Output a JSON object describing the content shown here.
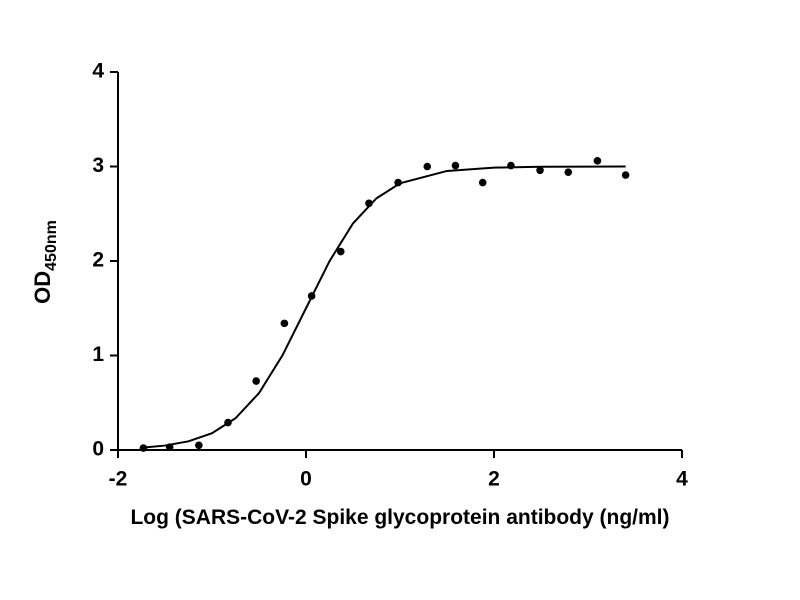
{
  "chart_data": {
    "type": "scatter",
    "xlabel": "Log (SARS-CoV-2 Spike glycoprotein antibody (ng/ml)",
    "ylabel": {
      "main": "OD",
      "sub": "450nm"
    },
    "xlim": [
      -2,
      4
    ],
    "xticks": [
      -2,
      0,
      2,
      4
    ],
    "ylim": [
      0,
      4
    ],
    "yticks": [
      0,
      1,
      2,
      3,
      4
    ],
    "grid": false,
    "series": [
      {
        "style": "points",
        "color": "#000000",
        "x": [
          -1.73,
          -1.45,
          -1.14,
          -0.83,
          -0.53,
          -0.23,
          0.06,
          0.37,
          0.67,
          0.98,
          1.29,
          1.59,
          1.88,
          2.18,
          2.49,
          2.79,
          3.1,
          3.4
        ],
        "values": [
          0.02,
          0.03,
          0.05,
          0.29,
          0.73,
          1.34,
          1.63,
          2.1,
          2.61,
          2.83,
          3.0,
          3.01,
          2.83,
          3.01,
          2.96,
          2.94,
          3.06,
          2.91
        ]
      },
      {
        "style": "line",
        "color": "#000000",
        "x": [
          -1.75,
          -1.5,
          -1.25,
          -1,
          -0.75,
          -0.5,
          -0.25,
          0,
          0.25,
          0.5,
          0.75,
          1,
          1.5,
          2,
          2.5,
          3,
          3.4
        ],
        "values": [
          0.024,
          0.047,
          0.092,
          0.178,
          0.336,
          0.602,
          1.002,
          1.5,
          1.998,
          2.398,
          2.664,
          2.822,
          2.953,
          2.988,
          2.997,
          2.999,
          3.0
        ]
      }
    ]
  }
}
